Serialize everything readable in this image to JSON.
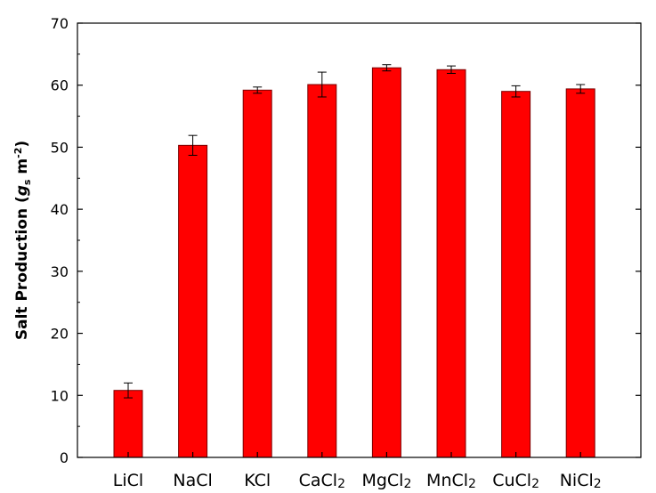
{
  "chart_data": {
    "type": "bar",
    "categories": [
      {
        "base": "LiCl",
        "sub": ""
      },
      {
        "base": "NaCl",
        "sub": ""
      },
      {
        "base": "KCl",
        "sub": ""
      },
      {
        "base": "CaCl",
        "sub": "2"
      },
      {
        "base": "MgCl",
        "sub": "2"
      },
      {
        "base": "MnCl",
        "sub": "2"
      },
      {
        "base": "CuCl",
        "sub": "2"
      },
      {
        "base": "NiCl",
        "sub": "2"
      }
    ],
    "values": [
      10.8,
      50.3,
      59.2,
      60.1,
      62.8,
      62.5,
      59.0,
      59.4
    ],
    "errors": [
      1.2,
      1.6,
      0.5,
      2.0,
      0.5,
      0.6,
      0.9,
      0.7
    ],
    "ylabel": {
      "main": "Salt Production (",
      "g": "g",
      "g_sub": "s",
      "unit": " m",
      "unit_sup": "-2",
      "close": ")"
    },
    "ylim": [
      0,
      70
    ],
    "yticks": [
      0,
      10,
      20,
      30,
      40,
      50,
      60,
      70
    ],
    "bar_color": "#ff0000",
    "bar_edge_color": "#7a0000",
    "grid": false
  }
}
